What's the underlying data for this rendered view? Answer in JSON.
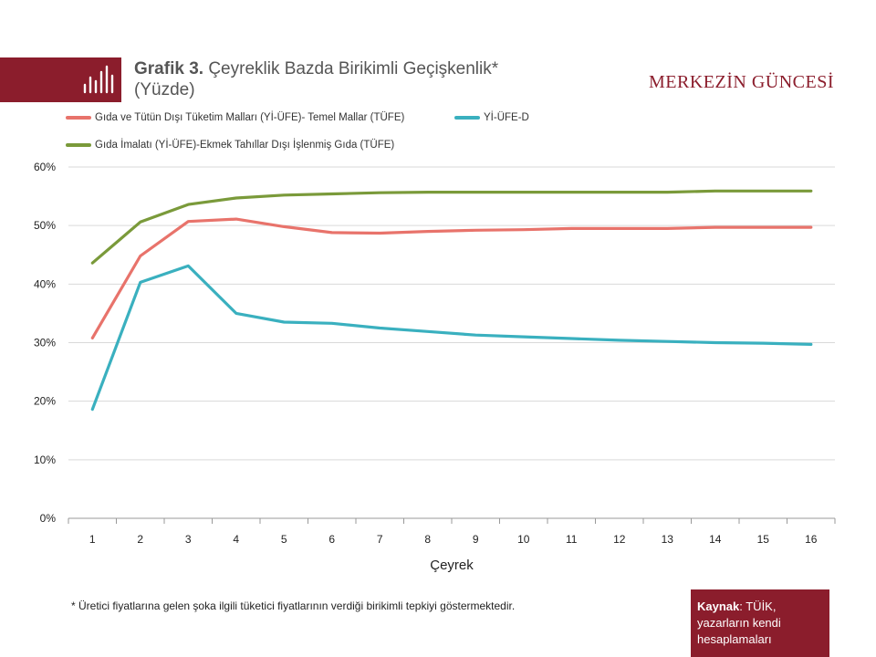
{
  "header": {
    "title_lead": "Grafik 3.",
    "title_rest": "Çeyreklik Bazda Birikimli Geçişkenlik* (Yüzde)",
    "brand": "MERKEZİN GÜNCESİ"
  },
  "footnote": "* Üretici fiyatlarına gelen şoka ilgili tüketici fiyatlarının verdiği birikimli tepkiyi göstermektedir.",
  "source": {
    "label": "Kaynak",
    "text": ": TÜİK, yazarların kendi hesaplamaları"
  },
  "colors": {
    "accent": "#8b1d2c",
    "series_red": "#e8736b",
    "series_teal": "#3ab0bf",
    "series_green": "#7a9a3a",
    "grid": "#d9d9d9",
    "axis": "#999999"
  },
  "chart_data": {
    "type": "line",
    "x": [
      1,
      2,
      3,
      4,
      5,
      6,
      7,
      8,
      9,
      10,
      11,
      12,
      13,
      14,
      15,
      16
    ],
    "xlabel": "Çeyrek",
    "ylabel": "",
    "ylim": [
      0,
      60
    ],
    "yticks": [
      "0%",
      "10%",
      "20%",
      "30%",
      "40%",
      "50%",
      "60%"
    ],
    "ytick_values": [
      0,
      10,
      20,
      30,
      40,
      50,
      60
    ],
    "grid": true,
    "legend_position": "top",
    "series": [
      {
        "name": "Gıda ve Tütün Dışı Tüketim Malları (Yİ-ÜFE)- Temel Mallar (TÜFE)",
        "color": "#e8736b",
        "values": [
          30.8,
          44.8,
          50.7,
          51.1,
          49.8,
          48.8,
          48.7,
          49.0,
          49.2,
          49.3,
          49.5,
          49.5,
          49.5,
          49.7,
          49.7,
          49.7
        ]
      },
      {
        "name": "Yİ-ÜFE-D",
        "color": "#3ab0bf",
        "values": [
          18.6,
          40.3,
          43.1,
          35.0,
          33.5,
          33.3,
          32.5,
          31.9,
          31.3,
          31.0,
          30.7,
          30.4,
          30.2,
          30.0,
          29.9,
          29.7
        ]
      },
      {
        "name": "Gıda İmalatı (Yİ-ÜFE)-Ekmek Tahıllar Dışı İşlenmiş Gıda (TÜFE)",
        "color": "#7a9a3a",
        "values": [
          43.6,
          50.6,
          53.6,
          54.7,
          55.2,
          55.4,
          55.6,
          55.7,
          55.7,
          55.7,
          55.7,
          55.7,
          55.7,
          55.9,
          55.9,
          55.9
        ]
      }
    ]
  }
}
